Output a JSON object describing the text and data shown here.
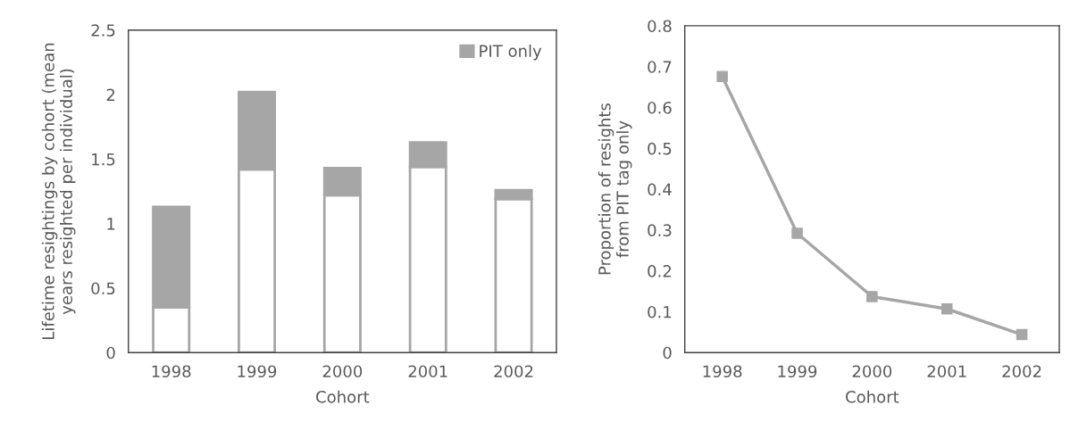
{
  "chart_data": [
    {
      "type": "bar",
      "stacked": true,
      "categories": [
        "1998",
        "1999",
        "2000",
        "2001",
        "2002"
      ],
      "xlabel": "Cohort",
      "ylabel": "Lifetime resightings by cohort (mean\nyears resighted per individual)",
      "ylim": [
        0,
        2.5
      ],
      "yticks": [
        0,
        {
          "value": 0.5,
          "label": "0.5"
        },
        1,
        {
          "value": 1.5,
          "label": "1.5"
        },
        2,
        {
          "value": 2.5,
          "label": "2.5"
        }
      ],
      "grid": false,
      "legend": "top right",
      "series": [
        {
          "color": "#ffffff",
          "values": [
            0.35,
            1.42,
            1.22,
            1.44,
            1.19
          ]
        },
        {
          "name": "PIT only",
          "color": "#a6a6a6",
          "values": [
            0.78,
            0.6,
            0.21,
            0.19,
            0.07
          ]
        }
      ]
    },
    {
      "type": "line",
      "categories": [
        "1998",
        "1999",
        "2000",
        "2001",
        "2002"
      ],
      "xlabel": "Cohort",
      "ylabel": "Proportion of resights\nfrom PIT tag only",
      "ylim": [
        0,
        0.8
      ],
      "yticks": [
        0,
        0.1,
        0.2,
        0.3,
        0.4,
        0.5,
        0.6,
        0.7,
        0.8
      ],
      "grid": false,
      "legend": false,
      "marker": "square",
      "line_style": "solid",
      "series": [
        {
          "color": "#a6a6a6",
          "values": [
            0.676,
            0.292,
            0.137,
            0.107,
            0.044
          ]
        }
      ]
    }
  ]
}
